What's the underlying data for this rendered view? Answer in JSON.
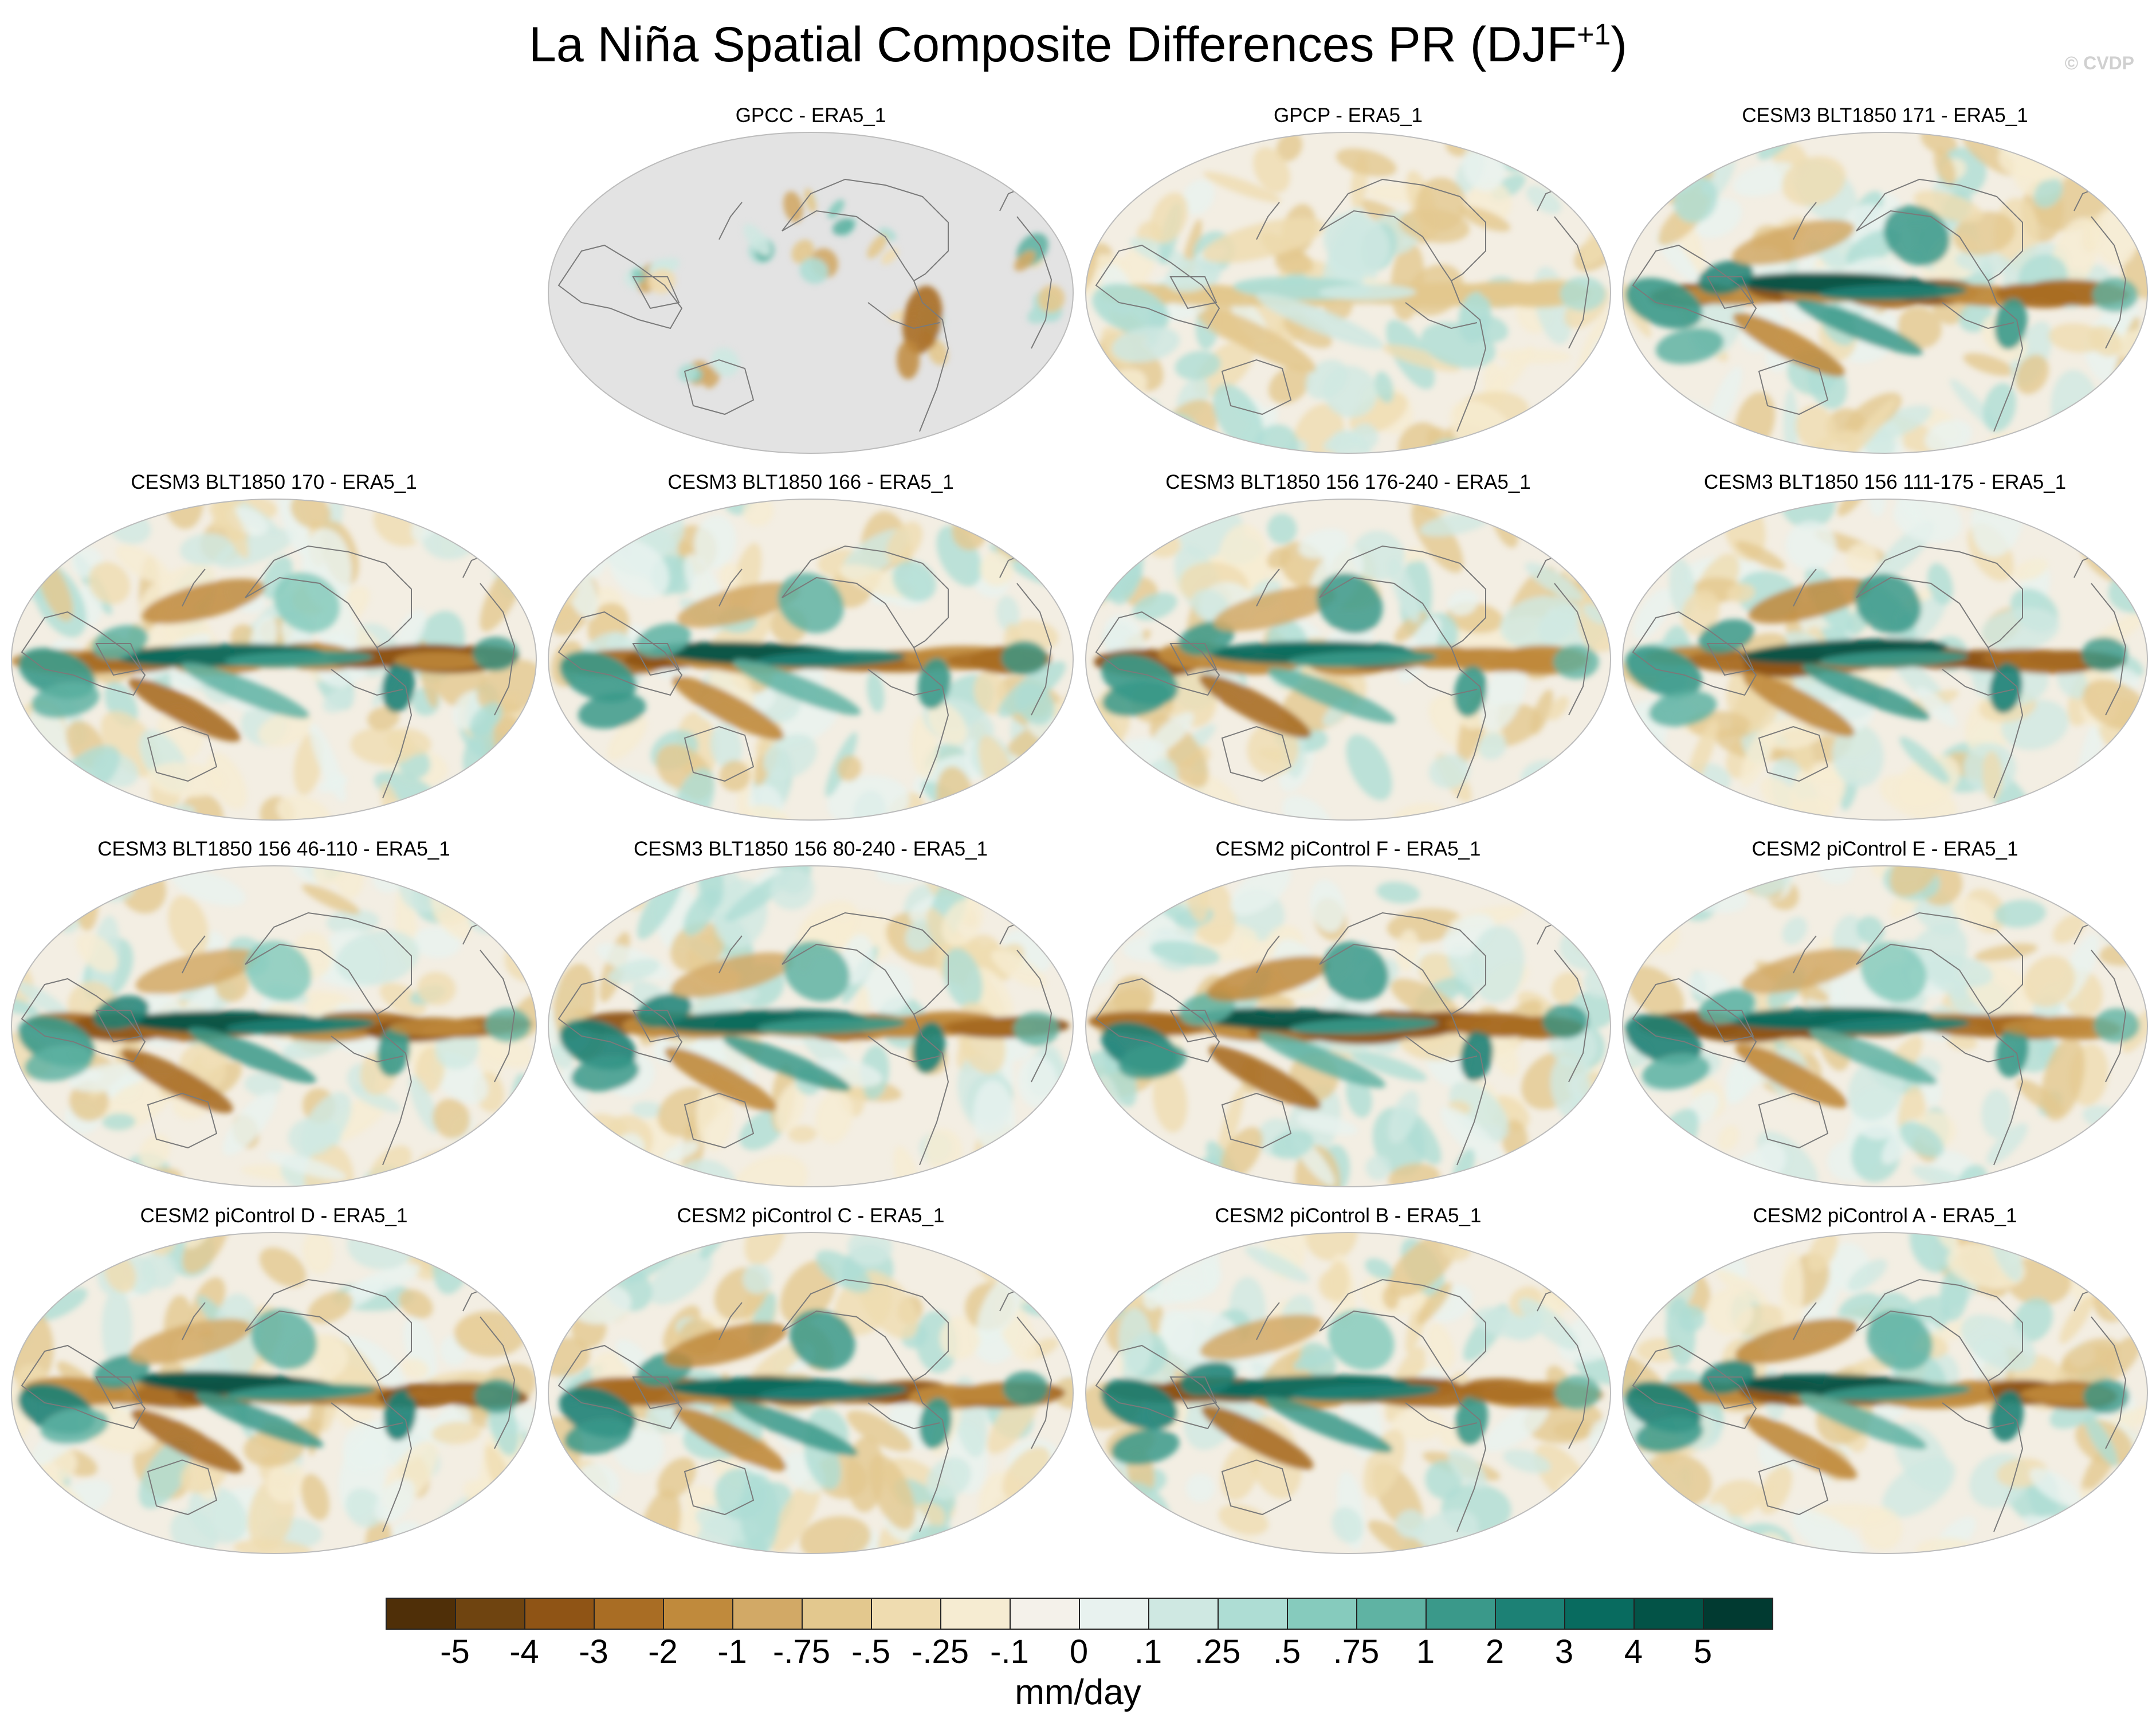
{
  "figure": {
    "title": "La Niña Spatial Composite Differences PR (DJF",
    "title_superscript": "+1",
    "title_close": ")",
    "watermark": "© CVDP"
  },
  "panels": [
    {
      "title": "GPCC - ERA5_1",
      "land_only": true
    },
    {
      "title": "GPCP - ERA5_1"
    },
    {
      "title": "CESM3 BLT1850 171 - ERA5_1"
    },
    {
      "title": "CESM3 BLT1850 170 - ERA5_1"
    },
    {
      "title": "CESM3 BLT1850 166 - ERA5_1"
    },
    {
      "title": "CESM3 BLT1850 156 176-240 - ERA5_1"
    },
    {
      "title": "CESM3 BLT1850 156 111-175 - ERA5_1"
    },
    {
      "title": "CESM3 BLT1850 156 46-110 - ERA5_1"
    },
    {
      "title": "CESM3 BLT1850 156 80-240 - ERA5_1"
    },
    {
      "title": "CESM2 piControl F - ERA5_1"
    },
    {
      "title": "CESM2 piControl E - ERA5_1"
    },
    {
      "title": "CESM2 piControl D - ERA5_1"
    },
    {
      "title": "CESM2 piControl C - ERA5_1"
    },
    {
      "title": "CESM2 piControl B - ERA5_1"
    },
    {
      "title": "CESM2 piControl A - ERA5_1"
    }
  ],
  "colorbar": {
    "units": "mm/day",
    "labels": [
      "-5",
      "-4",
      "-3",
      "-2",
      "-1",
      "-.75",
      "-.5",
      "-.25",
      "-.1",
      "0",
      ".1",
      ".25",
      ".5",
      ".75",
      "1",
      "2",
      "3",
      "4",
      "5"
    ],
    "colors": [
      "#4f2f08",
      "#6f4410",
      "#8f5415",
      "#a96d24",
      "#c08a3c",
      "#d2a966",
      "#e3c88e",
      "#efdcb0",
      "#f6ecd2",
      "#f4f1ea",
      "#e8f2ef",
      "#cfe8e2",
      "#aeddd4",
      "#86cbbd",
      "#5fb3a3",
      "#3a998a",
      "#1c8175",
      "#086b5f",
      "#035347",
      "#013a31"
    ]
  }
}
